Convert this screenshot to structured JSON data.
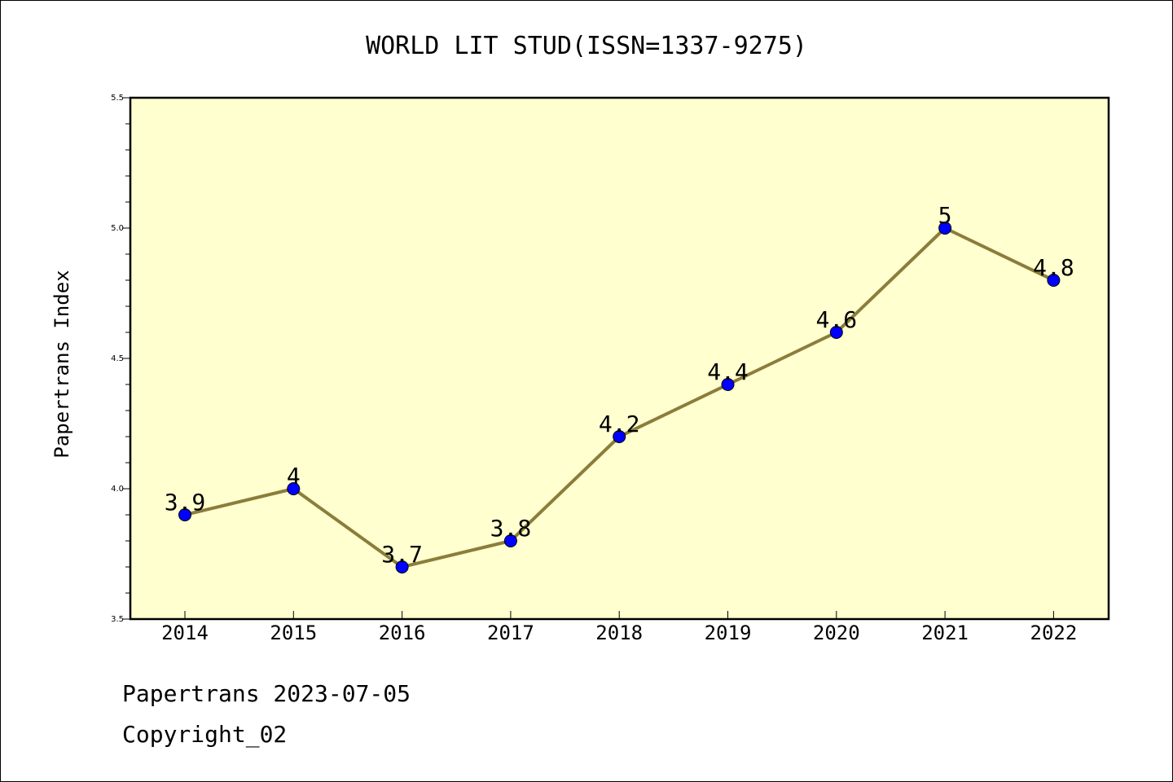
{
  "chart_data": {
    "type": "line",
    "title": "WORLD LIT STUD(ISSN=1337-9275)",
    "xlabel": "",
    "ylabel": "Papertrans Index",
    "categories": [
      "2014",
      "2015",
      "2016",
      "2017",
      "2018",
      "2019",
      "2020",
      "2021",
      "2022"
    ],
    "values": [
      3.9,
      4.0,
      3.7,
      3.8,
      4.2,
      4.4,
      4.6,
      5.0,
      4.8
    ],
    "data_labels": [
      "3.9",
      "4",
      "3.7",
      "3.8",
      "4.2",
      "4.4",
      "4.6",
      "5",
      "4.8"
    ],
    "ylim": [
      3.5,
      5.5
    ],
    "yticks": [
      "3.5",
      "4.0",
      "4.5",
      "5.0",
      "5.5"
    ],
    "grid": false,
    "colors": {
      "plot_background": "#ffffd0",
      "line": "#8b7d3a",
      "marker": "#0000ff"
    }
  },
  "footer": {
    "line1": "Papertrans 2023-07-05",
    "line2": "Copyright_02"
  }
}
